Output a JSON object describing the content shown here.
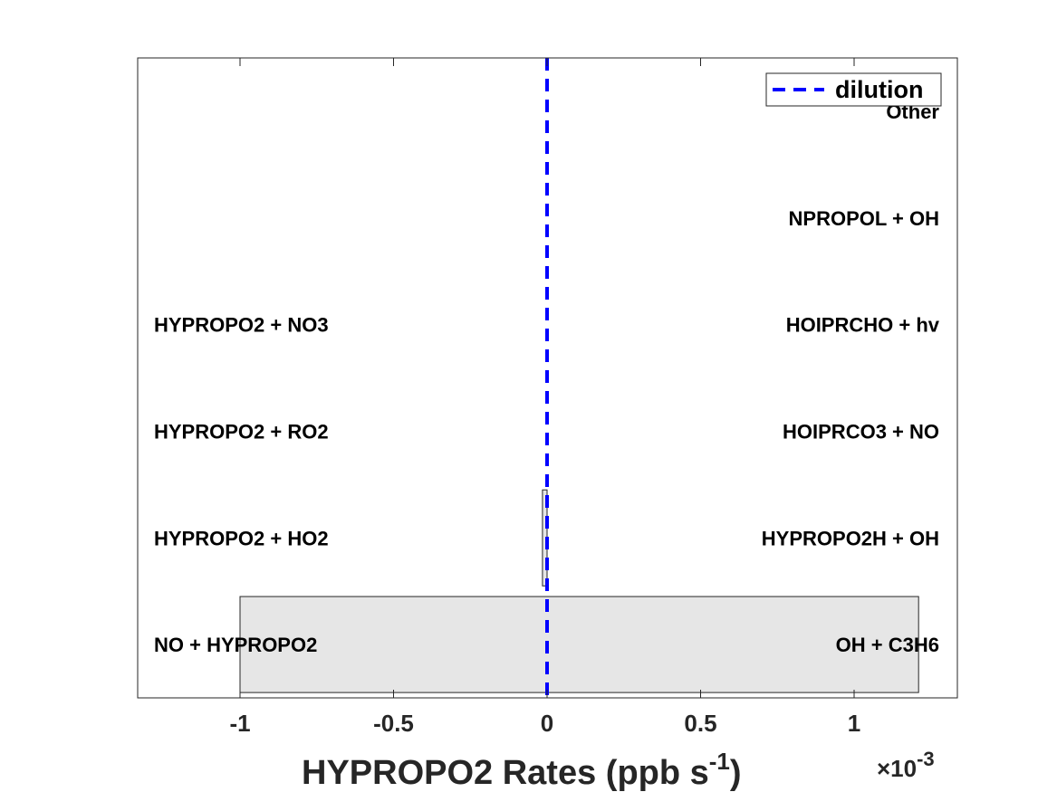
{
  "chart_data": {
    "type": "bar",
    "orientation": "horizontal",
    "stacked_diverging": true,
    "xlabel_main": "HYPROPO2 Rates (ppb s",
    "xlabel_sup": "-1",
    "xlabel_close": ")",
    "exponent_times": "×10",
    "exponent_power": "-3",
    "xlim": [
      -1.34,
      1.32
    ],
    "x_scale": 0.001,
    "xticks": [
      -1,
      -0.5,
      0,
      0.5,
      1
    ],
    "xtick_labels": [
      "-1",
      "-0.5",
      "0",
      "0.5",
      "1"
    ],
    "rows": 6,
    "production_labels": [
      "OH + C3H6",
      "HYPROPO2H + OH",
      "HOIPRCO3 + NO",
      "HOIPRCHO + hv",
      "NPROPOL + OH",
      "Other"
    ],
    "loss_labels": [
      "NO + HYPROPO2",
      "HYPROPO2 + HO2",
      "HYPROPO2 + RO2",
      "HYPROPO2 + NO3"
    ],
    "bars": [
      {
        "row": 0,
        "from": -1.0,
        "to": 1.21
      },
      {
        "row": 1,
        "from": -0.015,
        "to": 0.0
      }
    ],
    "bar_fill": "#e6e6e6",
    "dilution": {
      "name": "dilution",
      "x": 0,
      "color": "#0000ff",
      "style": "dashed"
    },
    "legend_position": "top-right",
    "grid": false
  }
}
